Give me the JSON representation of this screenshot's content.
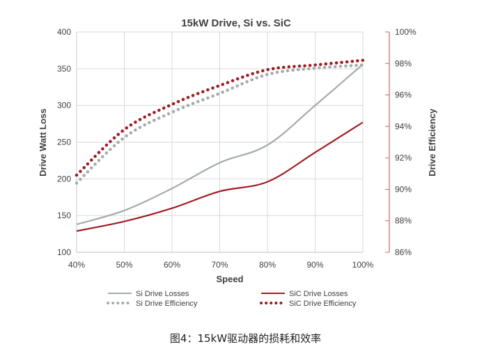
{
  "chart_data": {
    "type": "line",
    "title": "15kW Drive, Si vs. SiC",
    "xlabel": "Speed",
    "ylabel_left": "Drive Watt Loss",
    "ylabel_right": "Drive Efficiency",
    "x": [
      40,
      50,
      60,
      70,
      80,
      90,
      100
    ],
    "x_tick_labels": [
      "40%",
      "50%",
      "60%",
      "70%",
      "80%",
      "90%",
      "100%"
    ],
    "ylim_left": [
      100,
      400
    ],
    "y_ticks_left": [
      "100",
      "150",
      "200",
      "250",
      "300",
      "350",
      "400"
    ],
    "ylim_right": [
      86,
      100
    ],
    "y_ticks_right": [
      "86%",
      "88%",
      "90%",
      "92%",
      "94%",
      "96%",
      "98%",
      "100%"
    ],
    "grid": true,
    "legend_position": "bottom",
    "series": [
      {
        "name": "Si Drive Losses",
        "axis": "left",
        "style": "solid",
        "color": "#a4aaad",
        "values": [
          138,
          157,
          187,
          222,
          246,
          300,
          356
        ]
      },
      {
        "name": "SiC Drive Losses",
        "axis": "right-none",
        "axis_used": "left",
        "style": "solid",
        "color": "#a01c22",
        "values": [
          129,
          142,
          160,
          183,
          196,
          236,
          277
        ]
      },
      {
        "name": "Si Drive Efficiency",
        "axis": "right",
        "style": "dotted",
        "color": "#a4aaad",
        "values": [
          90.4,
          93.3,
          94.9,
          96.1,
          97.3,
          97.7,
          97.9
        ]
      },
      {
        "name": "SiC Drive Efficiency",
        "axis": "right",
        "style": "dotted",
        "color": "#a01c22",
        "values": [
          90.9,
          93.8,
          95.4,
          96.6,
          97.6,
          97.9,
          98.2
        ]
      }
    ]
  },
  "caption": "图4：15kW驱动器的损耗和效率"
}
